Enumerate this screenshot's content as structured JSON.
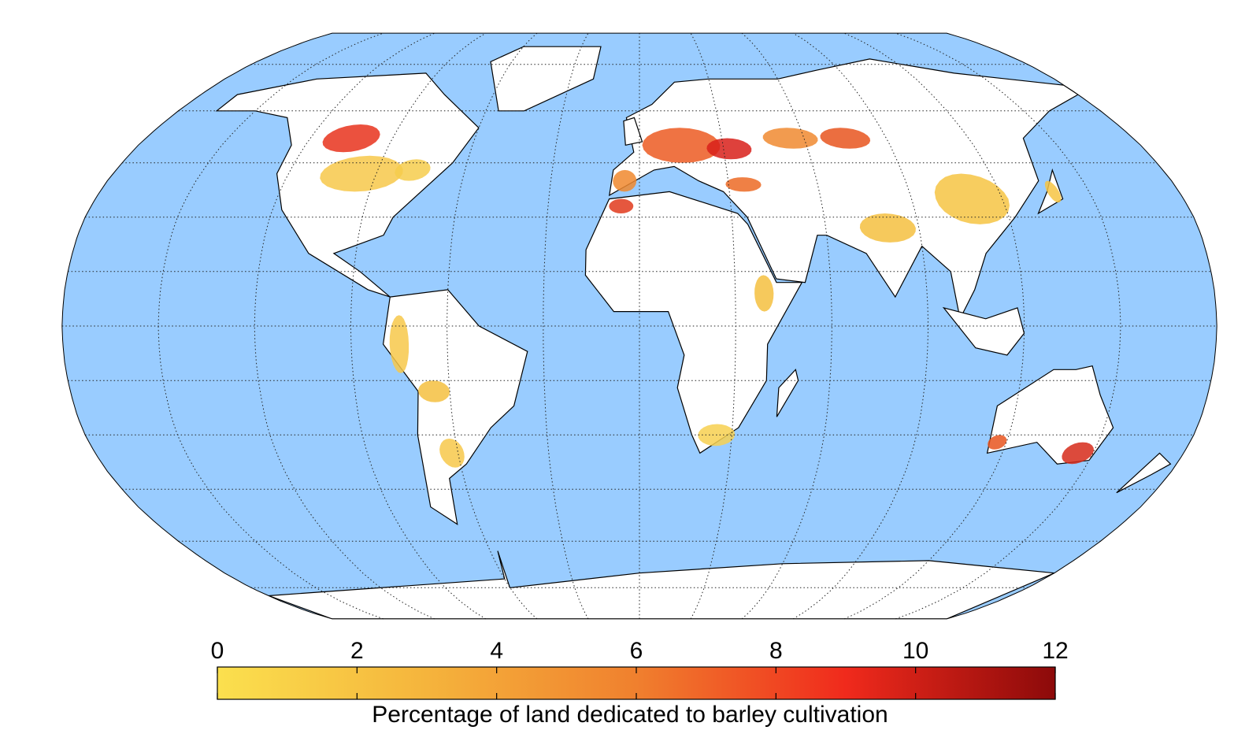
{
  "colorbar": {
    "label": "Percentage of land dedicated to barley cultivation",
    "range": [
      0,
      12
    ],
    "ticks": [
      0,
      2,
      4,
      6,
      8,
      10,
      12
    ],
    "colors": [
      "#fbe04e",
      "#f5b43c",
      "#f0802e",
      "#f02a1c",
      "#8c0a0a"
    ]
  }
}
